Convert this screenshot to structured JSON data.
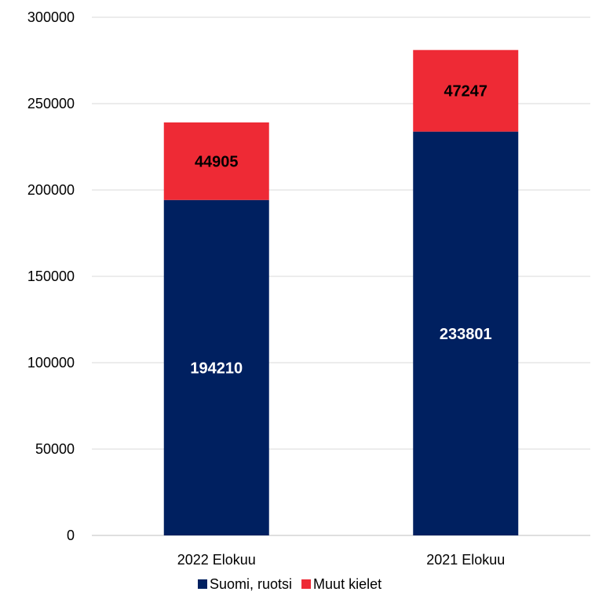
{
  "chart_data": {
    "type": "bar",
    "stacked": true,
    "categories": [
      "2022 Elokuu",
      "2021 Elokuu"
    ],
    "series": [
      {
        "name": "Suomi, ruotsi",
        "values": [
          194210,
          233801
        ],
        "color": "#002060"
      },
      {
        "name": "Muut kielet",
        "values": [
          44905,
          47247
        ],
        "color": "#EE2A35"
      }
    ],
    "y_ticks": [
      "0",
      "50000",
      "100000",
      "150000",
      "200000",
      "250000",
      "300000"
    ],
    "ylim": [
      0,
      300000
    ],
    "grid": true,
    "legend_position": "bottom",
    "data_labels": true
  }
}
